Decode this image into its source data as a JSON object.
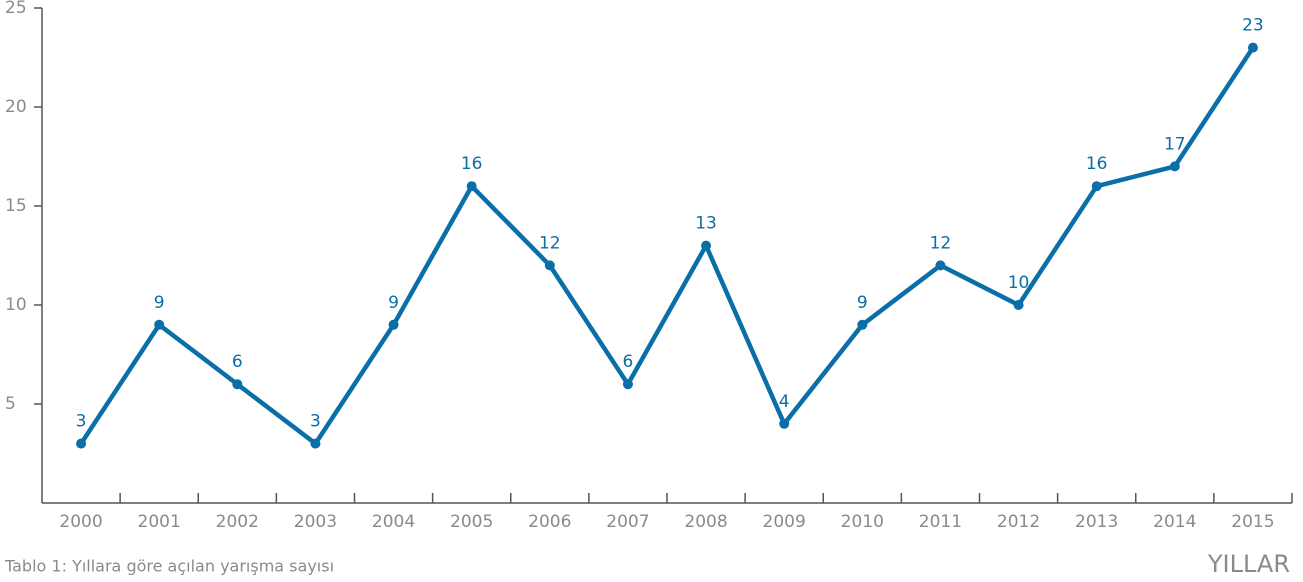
{
  "chart_data": {
    "type": "line",
    "caption": "Tablo 1: Yıllara göre açılan yarışma sayısı",
    "x_label": "YILLAR",
    "categories": [
      "2000",
      "2001",
      "2002",
      "2003",
      "2004",
      "2005",
      "2006",
      "2007",
      "2008",
      "2009",
      "2010",
      "2011",
      "2012",
      "2013",
      "2014",
      "2015"
    ],
    "series": [
      {
        "color": "#0a6ea8",
        "values": [
          3,
          9,
          6,
          3,
          9,
          16,
          12,
          6,
          13,
          4,
          9,
          12,
          10,
          16,
          17,
          23
        ]
      }
    ],
    "ylim": [
      0,
      25
    ],
    "yticks": [
      5,
      10,
      15,
      20,
      25
    ]
  }
}
